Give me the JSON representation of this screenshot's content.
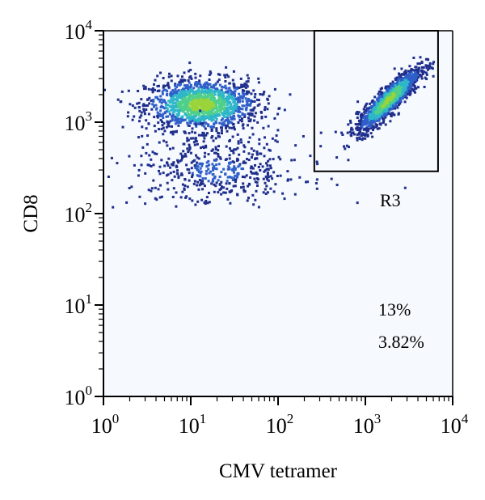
{
  "chart_data": {
    "type": "scatter",
    "x_axis": {
      "label": "CMV tetramer",
      "scale": "log",
      "range": [
        1,
        10000
      ],
      "ticks": [
        {
          "base": "10",
          "exp": "0",
          "value": 1
        },
        {
          "base": "10",
          "exp": "1",
          "value": 10
        },
        {
          "base": "10",
          "exp": "2",
          "value": 100
        },
        {
          "base": "10",
          "exp": "3",
          "value": 1000
        },
        {
          "base": "10",
          "exp": "4",
          "value": 10000
        }
      ]
    },
    "y_axis": {
      "label": "CD8",
      "scale": "log",
      "range": [
        1,
        10000
      ],
      "ticks": [
        {
          "base": "10",
          "exp": "0",
          "value": 1
        },
        {
          "base": "10",
          "exp": "1",
          "value": 10
        },
        {
          "base": "10",
          "exp": "2",
          "value": 100
        },
        {
          "base": "10",
          "exp": "3",
          "value": 1000
        },
        {
          "base": "10",
          "exp": "4",
          "value": 10000
        }
      ]
    },
    "gate": {
      "name": "R3",
      "x_range": [
        260,
        6800
      ],
      "y_range": [
        290,
        10000
      ]
    },
    "annotations": [
      "13%",
      "3.82%"
    ],
    "populations": [
      {
        "center": [
          13,
          1600
        ],
        "spread_log": [
          0.32,
          0.14
        ],
        "peak_density": "high"
      },
      {
        "center": [
          1800,
          1800
        ],
        "spread_log": [
          0.18,
          0.16
        ],
        "peak_density": "high"
      },
      {
        "center": [
          20,
          300
        ],
        "spread_log": [
          0.5,
          0.2
        ],
        "peak_density": "low"
      }
    ],
    "density_colors": [
      "#1f2e8c",
      "#2f5fc9",
      "#2fb7c9",
      "#4fcf8a",
      "#9ad43a"
    ],
    "grid": false,
    "legend": "none"
  }
}
